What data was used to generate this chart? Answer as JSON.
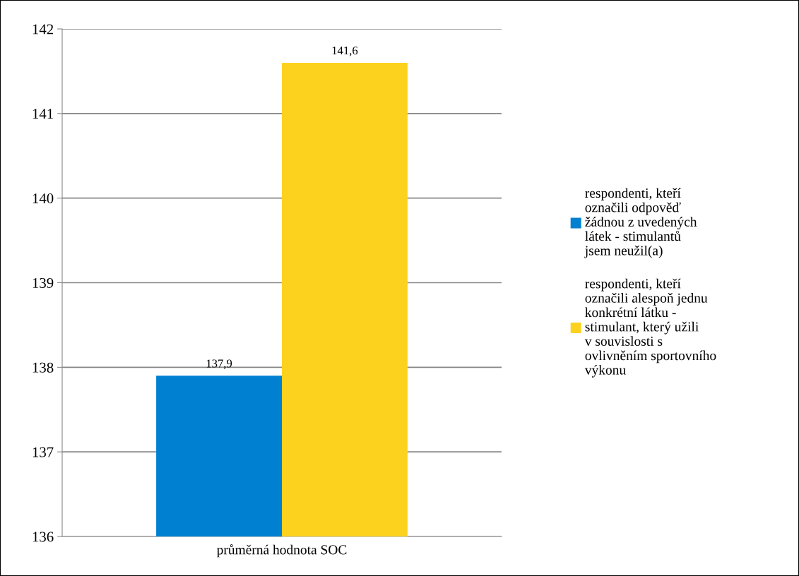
{
  "chart_data": {
    "type": "bar",
    "categories": [
      "průměrná hodnota SOC"
    ],
    "series": [
      {
        "name": "respondenti, kteří označili odpověď žádnou z uvedených látek - stimulantů jsem neužil(a)",
        "color": "#0080d0",
        "values": [
          137.9
        ],
        "value_labels": [
          "137,9"
        ]
      },
      {
        "name": "respondenti, kteří označili alespoň jednu konkrétní látku - stimulant, který užili v souvislosti s ovlivněním sportovního výkonu",
        "color": "#fdd21f",
        "values": [
          141.6
        ],
        "value_labels": [
          "141,6"
        ]
      }
    ],
    "ylim": [
      136,
      142
    ],
    "yticks": [
      136,
      137,
      138,
      139,
      140,
      141,
      142
    ],
    "grid": "y",
    "legend": "right"
  }
}
